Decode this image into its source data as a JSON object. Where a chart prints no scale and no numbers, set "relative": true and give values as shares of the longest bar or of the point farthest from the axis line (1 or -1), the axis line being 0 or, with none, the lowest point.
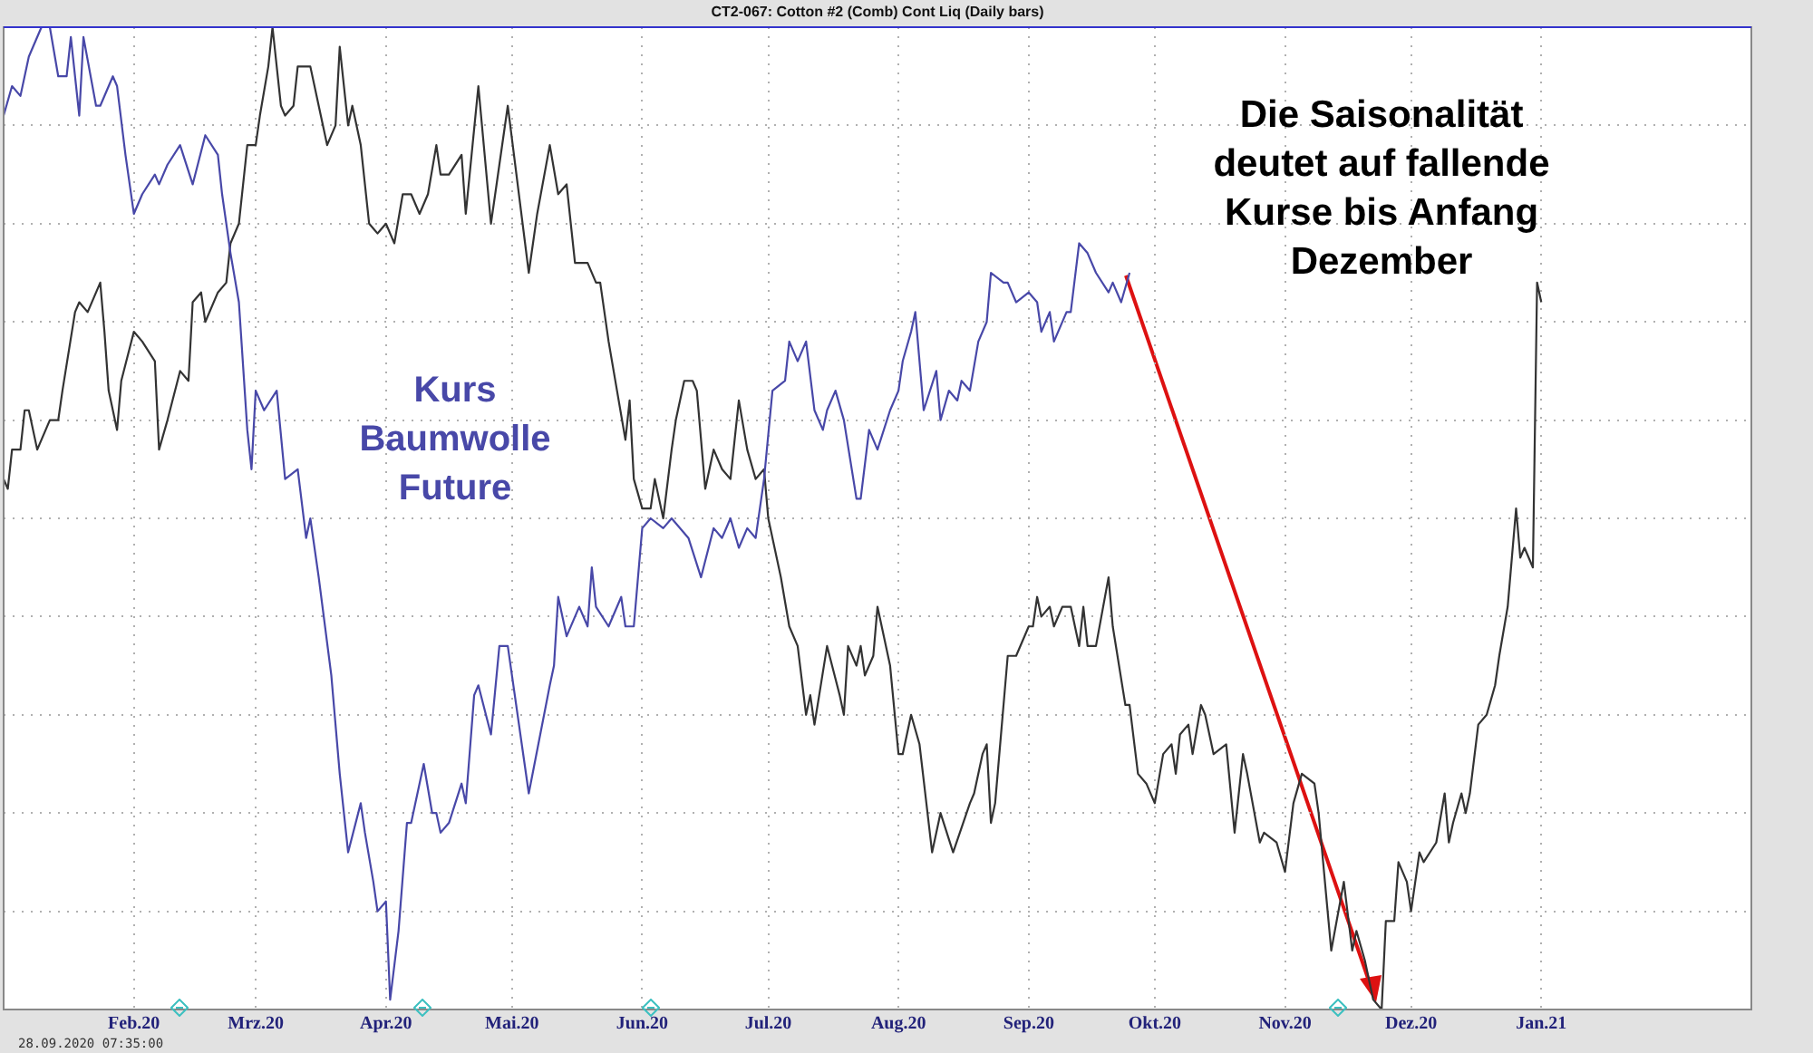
{
  "chart_data": {
    "type": "line",
    "title": "CT2-067: Cotton #2 (Comb) Cont Liq (Daily bars)",
    "relative": true,
    "grid": true,
    "legend": false,
    "xlim": [
      "2020-01-01",
      "2021-02-20"
    ],
    "xticks": [
      {
        "value": "2020-02-01",
        "label": "Feb.20"
      },
      {
        "value": "2020-03-01",
        "label": "Mrz.20"
      },
      {
        "value": "2020-04-01",
        "label": "Apr.20"
      },
      {
        "value": "2020-05-01",
        "label": "Mai.20"
      },
      {
        "value": "2020-06-01",
        "label": "Jun.20"
      },
      {
        "value": "2020-07-01",
        "label": "Jul.20"
      },
      {
        "value": "2020-08-01",
        "label": "Aug.20"
      },
      {
        "value": "2020-09-01",
        "label": "Sep.20"
      },
      {
        "value": "2020-10-01",
        "label": "Okt.20"
      },
      {
        "value": "2020-11-01",
        "label": "Nov.20"
      },
      {
        "value": "2020-12-01",
        "label": "Dez.20"
      },
      {
        "value": "2021-01-01",
        "label": "Jan.21"
      }
    ],
    "annotations": [
      "Die Saisonalität deutet auf fallende Kurse bis Anfang Dezember",
      "28.09.2020 07:35:00"
    ],
    "series": [
      {
        "name": "Kurs Baumwolle Future",
        "color": "#4848a8",
        "x": [
          "2020-01-01",
          "2020-01-03",
          "2020-01-05",
          "2020-01-07",
          "2020-01-10",
          "2020-01-12",
          "2020-01-14",
          "2020-01-16",
          "2020-01-17",
          "2020-01-19",
          "2020-01-20",
          "2020-01-23",
          "2020-01-24",
          "2020-01-27",
          "2020-01-28",
          "2020-01-30",
          "2020-02-01",
          "2020-02-03",
          "2020-02-06",
          "2020-02-07",
          "2020-02-09",
          "2020-02-12",
          "2020-02-15",
          "2020-02-18",
          "2020-02-21",
          "2020-02-22",
          "2020-02-24",
          "2020-02-26",
          "2020-02-28",
          "2020-02-29",
          "2020-03-01",
          "2020-03-03",
          "2020-03-06",
          "2020-03-08",
          "2020-03-11",
          "2020-03-13",
          "2020-03-14",
          "2020-03-16",
          "2020-03-19",
          "2020-03-21",
          "2020-03-23",
          "2020-03-26",
          "2020-03-27",
          "2020-03-29",
          "2020-03-30",
          "2020-04-01",
          "2020-04-02",
          "2020-04-04",
          "2020-04-06",
          "2020-04-07",
          "2020-04-10",
          "2020-04-12",
          "2020-04-13",
          "2020-04-14",
          "2020-04-16",
          "2020-04-19",
          "2020-04-20",
          "2020-04-22",
          "2020-04-23",
          "2020-04-26",
          "2020-04-28",
          "2020-04-30",
          "2020-05-05",
          "2020-05-10",
          "2020-05-11",
          "2020-05-12",
          "2020-05-14",
          "2020-05-17",
          "2020-05-19",
          "2020-05-20",
          "2020-05-21",
          "2020-05-24",
          "2020-05-27",
          "2020-05-28",
          "2020-05-30",
          "2020-06-01",
          "2020-06-03",
          "2020-06-06",
          "2020-06-08",
          "2020-06-12",
          "2020-06-15",
          "2020-06-18",
          "2020-06-20",
          "2020-06-22",
          "2020-06-24",
          "2020-06-26",
          "2020-06-28",
          "2020-06-30",
          "2020-07-02",
          "2020-07-05",
          "2020-07-06",
          "2020-07-08",
          "2020-07-10",
          "2020-07-12",
          "2020-07-14",
          "2020-07-15",
          "2020-07-17",
          "2020-07-19",
          "2020-07-22",
          "2020-07-23",
          "2020-07-25",
          "2020-07-27",
          "2020-07-30",
          "2020-08-01",
          "2020-08-02",
          "2020-08-04",
          "2020-08-05",
          "2020-08-07",
          "2020-08-10",
          "2020-08-11",
          "2020-08-13",
          "2020-08-15",
          "2020-08-16",
          "2020-08-18",
          "2020-08-20",
          "2020-08-22",
          "2020-08-23",
          "2020-08-26",
          "2020-08-27",
          "2020-08-29",
          "2020-09-01",
          "2020-09-03",
          "2020-09-04",
          "2020-09-06",
          "2020-09-07",
          "2020-09-10",
          "2020-09-11",
          "2020-09-13",
          "2020-09-15",
          "2020-09-17",
          "2020-09-20",
          "2020-09-21",
          "2020-09-23",
          "2020-09-25"
        ],
        "values": [
          0.91,
          0.94,
          0.93,
          0.97,
          1.0,
          1.0,
          0.95,
          0.95,
          0.99,
          0.91,
          0.99,
          0.92,
          0.92,
          0.95,
          0.94,
          0.87,
          0.81,
          0.83,
          0.85,
          0.84,
          0.86,
          0.88,
          0.84,
          0.89,
          0.87,
          0.83,
          0.77,
          0.72,
          0.59,
          0.55,
          0.63,
          0.61,
          0.63,
          0.54,
          0.55,
          0.48,
          0.5,
          0.44,
          0.34,
          0.24,
          0.16,
          0.21,
          0.18,
          0.13,
          0.1,
          0.11,
          0.01,
          0.08,
          0.19,
          0.19,
          0.25,
          0.2,
          0.2,
          0.18,
          0.19,
          0.23,
          0.21,
          0.32,
          0.33,
          0.28,
          0.37,
          0.37,
          0.22,
          0.33,
          0.35,
          0.42,
          0.38,
          0.41,
          0.39,
          0.45,
          0.41,
          0.39,
          0.42,
          0.39,
          0.39,
          0.49,
          0.5,
          0.49,
          0.5,
          0.48,
          0.44,
          0.49,
          0.48,
          0.5,
          0.47,
          0.49,
          0.48,
          0.54,
          0.63,
          0.64,
          0.68,
          0.66,
          0.68,
          0.61,
          0.59,
          0.61,
          0.63,
          0.6,
          0.52,
          0.52,
          0.59,
          0.57,
          0.61,
          0.63,
          0.66,
          0.69,
          0.71,
          0.61,
          0.65,
          0.6,
          0.63,
          0.62,
          0.64,
          0.63,
          0.68,
          0.7,
          0.75,
          0.74,
          0.74,
          0.72,
          0.73,
          0.72,
          0.69,
          0.71,
          0.68,
          0.71,
          0.71,
          0.78,
          0.77,
          0.75,
          0.73,
          0.74,
          0.72,
          0.75
        ]
      },
      {
        "color": "#333333",
        "x": [
          "2020-01-01",
          "2020-01-02",
          "2020-01-03",
          "2020-01-05",
          "2020-01-06",
          "2020-01-07",
          "2020-01-09",
          "2020-01-12",
          "2020-01-14",
          "2020-01-15",
          "2020-01-18",
          "2020-01-19",
          "2020-01-21",
          "2020-01-24",
          "2020-01-25",
          "2020-01-26",
          "2020-01-28",
          "2020-01-29",
          "2020-02-01",
          "2020-02-03",
          "2020-02-06",
          "2020-02-07",
          "2020-02-09",
          "2020-02-12",
          "2020-02-14",
          "2020-02-15",
          "2020-02-17",
          "2020-02-18",
          "2020-02-21",
          "2020-02-23",
          "2020-02-24",
          "2020-02-26",
          "2020-02-28",
          "2020-03-01",
          "2020-03-02",
          "2020-03-04",
          "2020-03-05",
          "2020-03-07",
          "2020-03-08",
          "2020-03-10",
          "2020-03-11",
          "2020-03-13",
          "2020-03-14",
          "2020-03-16",
          "2020-03-18",
          "2020-03-20",
          "2020-03-21",
          "2020-03-23",
          "2020-03-24",
          "2020-03-26",
          "2020-03-28",
          "2020-03-30",
          "2020-04-01",
          "2020-04-03",
          "2020-04-05",
          "2020-04-07",
          "2020-04-09",
          "2020-04-11",
          "2020-04-13",
          "2020-04-14",
          "2020-04-16",
          "2020-04-19",
          "2020-04-20",
          "2020-04-23",
          "2020-04-26",
          "2020-04-28",
          "2020-04-30",
          "2020-05-05",
          "2020-05-07",
          "2020-05-10",
          "2020-05-12",
          "2020-05-14",
          "2020-05-16",
          "2020-05-19",
          "2020-05-21",
          "2020-05-22",
          "2020-05-24",
          "2020-05-26",
          "2020-05-28",
          "2020-05-29",
          "2020-05-30",
          "2020-06-01",
          "2020-06-03",
          "2020-06-04",
          "2020-06-06",
          "2020-06-08",
          "2020-06-09",
          "2020-06-11",
          "2020-06-13",
          "2020-06-14",
          "2020-06-16",
          "2020-06-18",
          "2020-06-20",
          "2020-06-22",
          "2020-06-24",
          "2020-06-26",
          "2020-06-28",
          "2020-06-30",
          "2020-07-01",
          "2020-07-04",
          "2020-07-06",
          "2020-07-08",
          "2020-07-10",
          "2020-07-11",
          "2020-07-12",
          "2020-07-15",
          "2020-07-18",
          "2020-07-19",
          "2020-07-20",
          "2020-07-22",
          "2020-07-23",
          "2020-07-24",
          "2020-07-26",
          "2020-07-27",
          "2020-07-30",
          "2020-08-01",
          "2020-08-02",
          "2020-08-04",
          "2020-08-06",
          "2020-08-09",
          "2020-08-11",
          "2020-08-14",
          "2020-08-18",
          "2020-08-19",
          "2020-08-21",
          "2020-08-22",
          "2020-08-23",
          "2020-08-24",
          "2020-08-27",
          "2020-08-29",
          "2020-09-01",
          "2020-09-02",
          "2020-09-03",
          "2020-09-04",
          "2020-09-06",
          "2020-09-07",
          "2020-09-09",
          "2020-09-11",
          "2020-09-13",
          "2020-09-14",
          "2020-09-15",
          "2020-09-17",
          "2020-09-20",
          "2020-09-21",
          "2020-09-24",
          "2020-09-25",
          "2020-09-27",
          "2020-09-29",
          "2020-10-01",
          "2020-10-03",
          "2020-10-05",
          "2020-10-06",
          "2020-10-07",
          "2020-10-09",
          "2020-10-10",
          "2020-10-12",
          "2020-10-13",
          "2020-10-15",
          "2020-10-18",
          "2020-10-20",
          "2020-10-22",
          "2020-10-23",
          "2020-10-26",
          "2020-10-27",
          "2020-10-30",
          "2020-11-01",
          "2020-11-03",
          "2020-11-05",
          "2020-11-08",
          "2020-11-09",
          "2020-11-12",
          "2020-11-15",
          "2020-11-17",
          "2020-11-18",
          "2020-11-20",
          "2020-11-22",
          "2020-11-24",
          "2020-11-25",
          "2020-11-27",
          "2020-11-28",
          "2020-11-30",
          "2020-12-01",
          "2020-12-03",
          "2020-12-04",
          "2020-12-07",
          "2020-12-09",
          "2020-12-10",
          "2020-12-11",
          "2020-12-13",
          "2020-12-14",
          "2020-12-15",
          "2020-12-17",
          "2020-12-19",
          "2020-12-21",
          "2020-12-22",
          "2020-12-24",
          "2020-12-25",
          "2020-12-26",
          "2020-12-27",
          "2020-12-28",
          "2020-12-30",
          "2020-12-31",
          "2021-01-01"
        ],
        "values": [
          0.54,
          0.53,
          0.57,
          0.57,
          0.61,
          0.61,
          0.57,
          0.6,
          0.6,
          0.63,
          0.71,
          0.72,
          0.71,
          0.74,
          0.69,
          0.63,
          0.59,
          0.64,
          0.69,
          0.68,
          0.66,
          0.57,
          0.6,
          0.65,
          0.64,
          0.72,
          0.73,
          0.7,
          0.73,
          0.74,
          0.78,
          0.8,
          0.88,
          0.88,
          0.91,
          0.96,
          1.0,
          0.92,
          0.91,
          0.92,
          0.96,
          0.96,
          0.96,
          0.92,
          0.88,
          0.9,
          0.98,
          0.9,
          0.92,
          0.88,
          0.8,
          0.79,
          0.8,
          0.78,
          0.83,
          0.83,
          0.81,
          0.83,
          0.88,
          0.85,
          0.85,
          0.87,
          0.81,
          0.94,
          0.8,
          0.86,
          0.92,
          0.75,
          0.81,
          0.88,
          0.83,
          0.84,
          0.76,
          0.76,
          0.74,
          0.74,
          0.68,
          0.63,
          0.58,
          0.62,
          0.54,
          0.51,
          0.51,
          0.54,
          0.5,
          0.57,
          0.6,
          0.64,
          0.64,
          0.63,
          0.53,
          0.57,
          0.55,
          0.54,
          0.62,
          0.57,
          0.54,
          0.55,
          0.5,
          0.44,
          0.39,
          0.37,
          0.3,
          0.32,
          0.29,
          0.37,
          0.32,
          0.3,
          0.37,
          0.35,
          0.37,
          0.34,
          0.36,
          0.41,
          0.35,
          0.26,
          0.26,
          0.3,
          0.27,
          0.16,
          0.2,
          0.16,
          0.21,
          0.22,
          0.26,
          0.27,
          0.19,
          0.21,
          0.36,
          0.36,
          0.39,
          0.39,
          0.42,
          0.4,
          0.41,
          0.39,
          0.41,
          0.41,
          0.37,
          0.41,
          0.37,
          0.37,
          0.44,
          0.39,
          0.31,
          0.31,
          0.24,
          0.23,
          0.21,
          0.26,
          0.27,
          0.24,
          0.28,
          0.29,
          0.26,
          0.31,
          0.3,
          0.26,
          0.27,
          0.18,
          0.26,
          0.24,
          0.17,
          0.18,
          0.17,
          0.14,
          0.21,
          0.24,
          0.23,
          0.2,
          0.06,
          0.13,
          0.06,
          0.08,
          0.05,
          0.01,
          0.0,
          0.09,
          0.09,
          0.15,
          0.13,
          0.1,
          0.16,
          0.15,
          0.17,
          0.22,
          0.17,
          0.19,
          0.22,
          0.2,
          0.22,
          0.29,
          0.3,
          0.33,
          0.36,
          0.41,
          0.46,
          0.51,
          0.46,
          0.47,
          0.45,
          0.74,
          0.72
        ]
      }
    ]
  }
}
